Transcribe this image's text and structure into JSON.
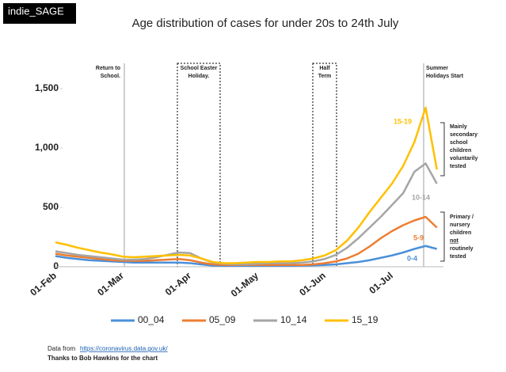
{
  "chart_data": {
    "type": "line",
    "logo": "indie_SAGE",
    "title": "Age distribution of cases for under 20s to 24th July",
    "categories": [
      "01-Feb",
      null,
      null,
      null,
      null,
      null,
      "01-Mar",
      null,
      null,
      null,
      null,
      null,
      "01-Apr",
      null,
      null,
      null,
      null,
      null,
      "01-May",
      null,
      null,
      null,
      null,
      null,
      "01-Jun",
      null,
      null,
      null,
      null,
      null,
      "01-Jul",
      null,
      null,
      null,
      null
    ],
    "series": [
      {
        "name": "00_04",
        "color": "#4a90d9",
        "label": "0-4",
        "values": [
          90,
          75,
          65,
          55,
          50,
          45,
          40,
          35,
          35,
          35,
          35,
          35,
          30,
          20,
          10,
          8,
          8,
          8,
          8,
          8,
          8,
          8,
          10,
          12,
          15,
          20,
          30,
          40,
          55,
          75,
          95,
          120,
          150,
          175,
          150
        ]
      },
      {
        "name": "05_09",
        "color": "#ed7d31",
        "label": "5-9",
        "values": [
          110,
          95,
          85,
          75,
          65,
          55,
          50,
          50,
          50,
          55,
          60,
          65,
          55,
          35,
          20,
          15,
          15,
          15,
          15,
          15,
          15,
          15,
          15,
          20,
          30,
          45,
          70,
          110,
          170,
          240,
          300,
          350,
          390,
          420,
          330
        ]
      },
      {
        "name": "10_14",
        "color": "#a5a5a5",
        "label": "10-14",
        "values": [
          130,
          115,
          100,
          90,
          80,
          70,
          60,
          60,
          65,
          80,
          100,
          120,
          115,
          70,
          35,
          25,
          20,
          20,
          25,
          30,
          30,
          30,
          35,
          45,
          65,
          100,
          160,
          240,
          330,
          420,
          520,
          620,
          800,
          870,
          700
        ]
      },
      {
        "name": "15_19",
        "color": "#ffc000",
        "label": "15-19",
        "values": [
          205,
          185,
          160,
          140,
          120,
          105,
          85,
          80,
          85,
          90,
          95,
          100,
          95,
          70,
          40,
          30,
          30,
          35,
          40,
          40,
          45,
          45,
          55,
          70,
          95,
          140,
          220,
          330,
          460,
          580,
          700,
          850,
          1050,
          1340,
          820
        ]
      }
    ],
    "ylim": [
      0,
      1700
    ],
    "yticks": [
      0,
      500,
      {
        "value": 1000,
        "label": "1,000"
      },
      {
        "value": 1500,
        "label": "1,500"
      }
    ],
    "annotations": {
      "return_to_school": [
        "Return to",
        "School."
      ],
      "easter": [
        "School Easter",
        "Holiday."
      ],
      "half_term": [
        "Half",
        "Term"
      ],
      "summer": [
        "Summer",
        "Holidays Start"
      ],
      "secondary_note": [
        "Mainly",
        "secondary",
        "school",
        "children",
        "voluntarily",
        "tested"
      ],
      "primary_note": [
        "Primary /",
        "nursery",
        "children",
        "not",
        "routinely",
        "tested"
      ]
    },
    "footer": {
      "source_prefix": "Data from",
      "source_url": "https://coronavirus.data.gov.uk/",
      "credit": "Thanks to Bob Hawkins for the chart"
    }
  }
}
